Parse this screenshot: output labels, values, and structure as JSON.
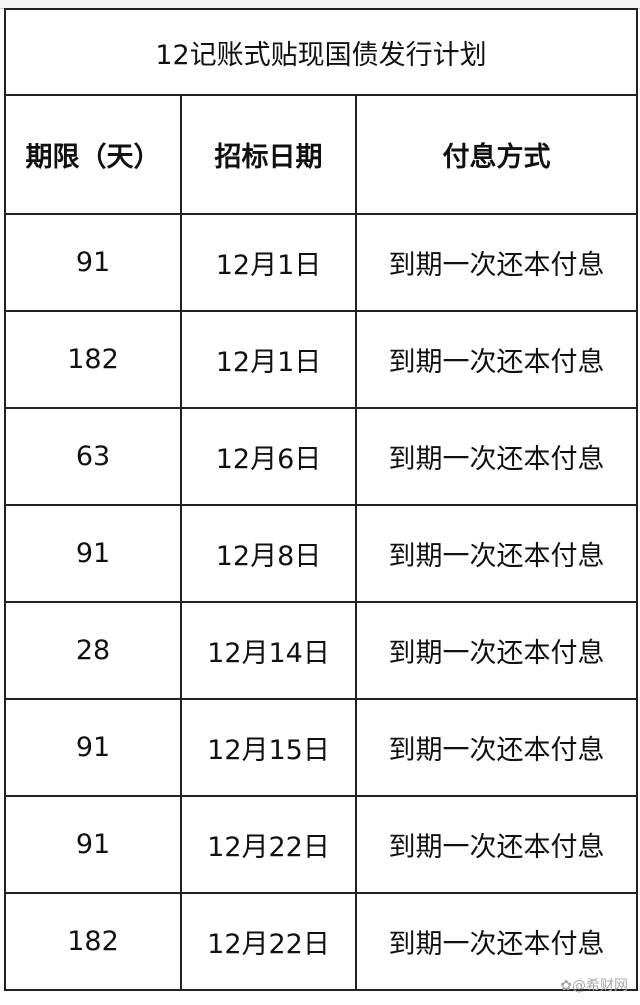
{
  "title": "12记账式贴现国债发行计划",
  "headers": [
    "期限（天）",
    "招标日期",
    "付息方式"
  ],
  "rows": [
    [
      "91",
      "12月1日",
      "到期一次还本付息"
    ],
    [
      "182",
      "12月1日",
      "到期一次还本付息"
    ],
    [
      "63",
      "12月6日",
      "到期一次还本付息"
    ],
    [
      "91",
      "12月8日",
      "到期一次还本付息"
    ],
    [
      "28",
      "12月14日",
      "到期一次还本付息"
    ],
    [
      "91",
      "12月15日",
      "到期一次还本付息"
    ],
    [
      "91",
      "12月22日",
      "到期一次还本付息"
    ],
    [
      "182",
      "12月22日",
      "到期一次还本付息"
    ]
  ],
  "watermark": "✿@希财网"
}
